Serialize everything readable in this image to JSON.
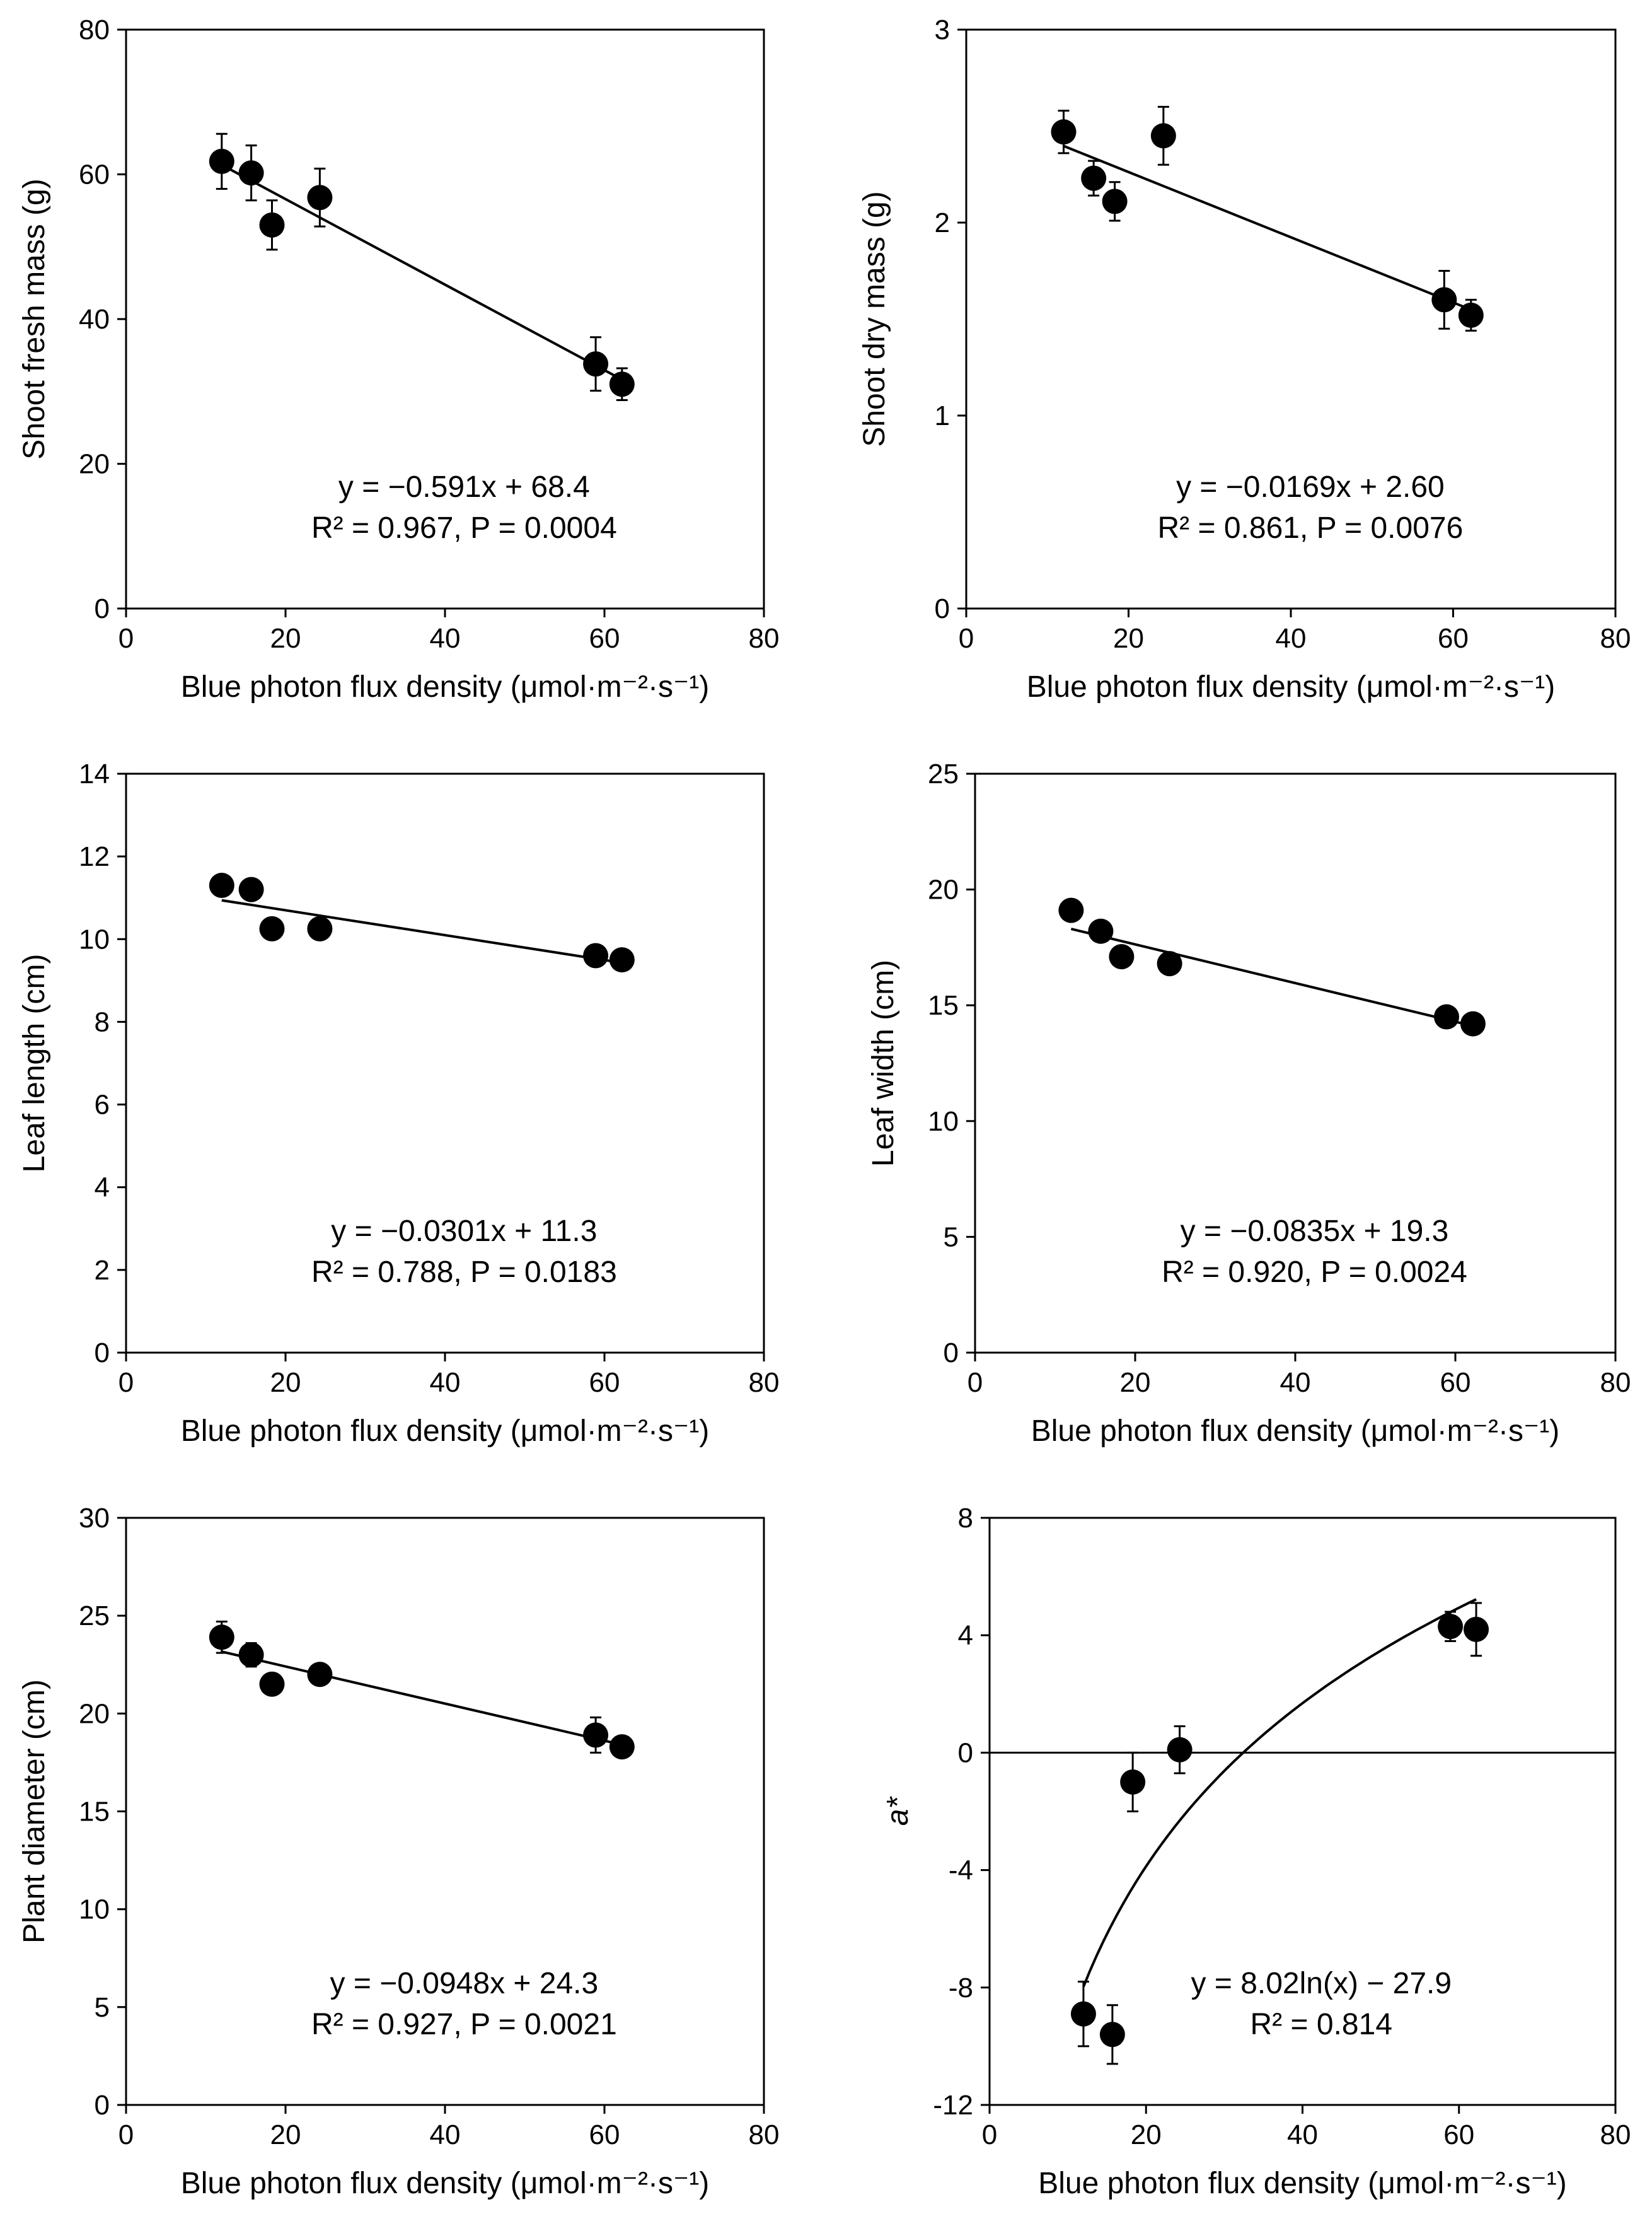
{
  "chart_data": [
    {
      "type": "scatter",
      "xlabel": "Blue photon flux density (μmol·m⁻²·s⁻¹)",
      "ylabel": "Shoot fresh mass (g)",
      "xlim": [
        0,
        80
      ],
      "ylim": [
        0,
        80
      ],
      "xticks": [
        0,
        20,
        40,
        60,
        80
      ],
      "yticks": [
        0,
        20,
        40,
        60,
        80
      ],
      "grid": false,
      "x": [
        12,
        15.7,
        18.3,
        24.3,
        58.9,
        62.2
      ],
      "y": [
        61.8,
        60.2,
        53,
        56.8,
        33.8,
        31
      ],
      "yerr": [
        3.8,
        3.8,
        3.4,
        4,
        3.7,
        2.2
      ],
      "fit": {
        "kind": "linear",
        "slope": -0.591,
        "intercept": 68.4,
        "x_range": [
          12,
          62.2
        ]
      },
      "equation": "y = −0.591x + 68.4",
      "stats": "R² = 0.967, P = 0.0004"
    },
    {
      "type": "scatter",
      "xlabel": "Blue photon flux density (μmol·m⁻²·s⁻¹)",
      "ylabel": "Shoot dry mass (g)",
      "xlim": [
        0,
        80
      ],
      "ylim": [
        0,
        3
      ],
      "xticks": [
        0,
        20,
        40,
        60,
        80
      ],
      "yticks": [
        0,
        1,
        2,
        3
      ],
      "grid": false,
      "x": [
        12,
        15.7,
        18.3,
        24.3,
        58.9,
        62.2
      ],
      "y": [
        2.47,
        2.23,
        2.11,
        2.45,
        1.6,
        1.52
      ],
      "yerr": [
        0.11,
        0.09,
        0.1,
        0.15,
        0.15,
        0.08
      ],
      "fit": {
        "kind": "linear",
        "slope": -0.0169,
        "intercept": 2.6,
        "x_range": [
          12,
          62.2
        ]
      },
      "equation": "y = −0.0169x + 2.60",
      "stats": "R² = 0.861, P = 0.0076"
    },
    {
      "type": "scatter",
      "xlabel": "Blue photon flux density (μmol·m⁻²·s⁻¹)",
      "ylabel": "Leaf length (cm)",
      "xlim": [
        0,
        80
      ],
      "ylim": [
        0,
        14
      ],
      "xticks": [
        0,
        20,
        40,
        60,
        80
      ],
      "yticks": [
        0,
        2,
        4,
        6,
        8,
        10,
        12,
        14
      ],
      "grid": false,
      "x": [
        12,
        15.7,
        18.3,
        24.3,
        58.9,
        62.2
      ],
      "y": [
        11.3,
        11.2,
        10.25,
        10.25,
        9.6,
        9.5
      ],
      "yerr": [
        0,
        0,
        0,
        0,
        0,
        0
      ],
      "fit": {
        "kind": "linear",
        "slope": -0.0301,
        "intercept": 11.3,
        "x_range": [
          12,
          62.2
        ]
      },
      "equation": "y = −0.0301x + 11.3",
      "stats": "R² = 0.788, P = 0.0183"
    },
    {
      "type": "scatter",
      "xlabel": "Blue photon flux density (μmol·m⁻²·s⁻¹)",
      "ylabel": "Leaf width (cm)",
      "xlim": [
        0,
        80
      ],
      "ylim": [
        0,
        25
      ],
      "xticks": [
        0,
        20,
        40,
        60,
        80
      ],
      "yticks": [
        0,
        5,
        10,
        15,
        20,
        25
      ],
      "grid": false,
      "x": [
        12,
        15.7,
        18.3,
        24.3,
        58.9,
        62.2
      ],
      "y": [
        19.1,
        18.2,
        17.1,
        16.8,
        14.5,
        14.2
      ],
      "yerr": [
        0,
        0,
        0,
        0,
        0,
        0
      ],
      "fit": {
        "kind": "linear",
        "slope": -0.0835,
        "intercept": 19.3,
        "x_range": [
          12,
          62.2
        ]
      },
      "equation": "y = −0.0835x + 19.3",
      "stats": "R² = 0.920, P = 0.0024"
    },
    {
      "type": "scatter",
      "xlabel": "Blue photon flux density (μmol·m⁻²·s⁻¹)",
      "ylabel": "Plant diameter (cm)",
      "xlim": [
        0,
        80
      ],
      "ylim": [
        0,
        30
      ],
      "xticks": [
        0,
        20,
        40,
        60,
        80
      ],
      "yticks": [
        0,
        5,
        10,
        15,
        20,
        25,
        30
      ],
      "grid": false,
      "x": [
        12,
        15.7,
        18.3,
        24.3,
        58.9,
        62.2
      ],
      "y": [
        23.9,
        23,
        21.5,
        22,
        18.9,
        18.3
      ],
      "yerr": [
        0.8,
        0.6,
        0,
        0,
        0.9,
        0.4
      ],
      "fit": {
        "kind": "linear",
        "slope": -0.0948,
        "intercept": 24.3,
        "x_range": [
          12,
          62.2
        ]
      },
      "equation": "y = −0.0948x + 24.3",
      "stats": "R² = 0.927, P = 0.0021"
    },
    {
      "type": "scatter",
      "xlabel": "Blue photon flux density (μmol·m⁻²·s⁻¹)",
      "ylabel": "a*",
      "xlim": [
        0,
        80
      ],
      "ylim": [
        -12,
        8
      ],
      "xticks": [
        0,
        20,
        40,
        60,
        80
      ],
      "yticks": [
        -12,
        -8,
        -4,
        0,
        4,
        8
      ],
      "ytick_labels": [
        "-12",
        "-8",
        "-4",
        "0",
        "4",
        "8"
      ],
      "grid": false,
      "zero_line": true,
      "x": [
        12,
        15.7,
        18.3,
        24.3,
        58.9,
        62.2
      ],
      "y": [
        -8.9,
        -9.6,
        -1,
        0.1,
        4.3,
        4.2
      ],
      "yerr": [
        1.1,
        1.0,
        1.0,
        0.8,
        0.5,
        0.9
      ],
      "fit": {
        "kind": "log",
        "a": 8.02,
        "b": -27.9,
        "x_range": [
          12,
          62.2
        ]
      },
      "equation": "y = 8.02ln(x) − 27.9",
      "stats": "R² = 0.814"
    }
  ]
}
